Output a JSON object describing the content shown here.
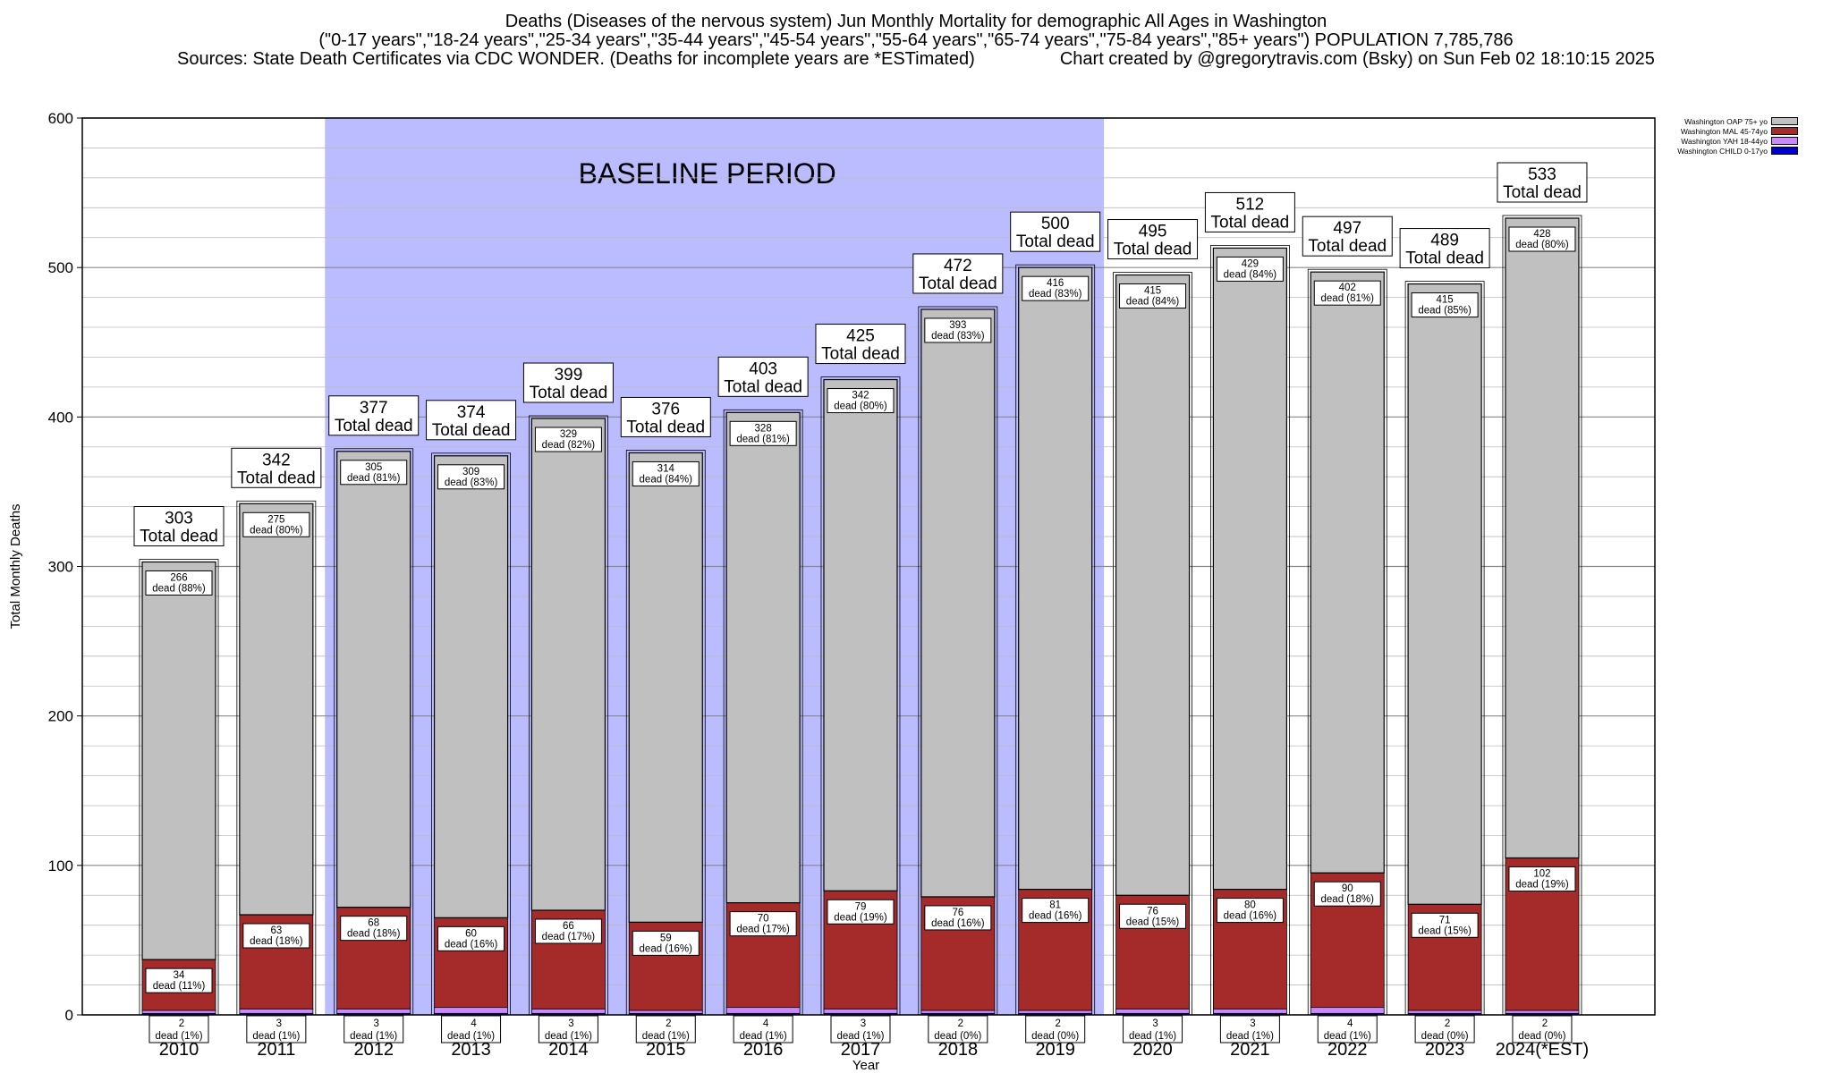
{
  "title": {
    "line1": "Deaths (Diseases of the nervous system) Jun Monthly Mortality for demographic All Ages in Washington",
    "line2": "(\"0-17 years\",\"18-24 years\",\"25-34 years\",\"35-44 years\",\"45-54 years\",\"55-64 years\",\"65-74 years\",\"75-84 years\",\"85+ years\") POPULATION 7,785,786",
    "line3": "Sources: State Death Certificates via CDC WONDER. (Deaths for incomplete years are *ESTimated)",
    "line3b": "Chart created by @gregorytravis.com (Bsky) on Sun Feb 02 18:10:15 2025"
  },
  "legend": [
    {
      "label": "Washington OAP 75+ yo",
      "color": "#c0c0c0"
    },
    {
      "label": "Washington MAL 45-74yo",
      "color": "#a52a2a"
    },
    {
      "label": "Washington YAH 18-44yo",
      "color": "#cc88ff"
    },
    {
      "label": "Washington CHILD 0-17yo",
      "color": "#0000cc"
    }
  ],
  "chart_data": {
    "type": "bar",
    "stacked": true,
    "title": "Deaths (Diseases of the nervous system) Jun Monthly Mortality for demographic All Ages in Washington",
    "xlabel": "Year",
    "ylabel": "Total Monthly Deaths",
    "ylim": [
      0,
      600
    ],
    "yticks": [
      0,
      100,
      200,
      300,
      400,
      500,
      600
    ],
    "grid": true,
    "legend_position": "top-right",
    "baseline_label": "BASELINE PERIOD",
    "baseline_range": [
      "2012",
      "2019"
    ],
    "total_label": "Total dead",
    "dead_label": "dead",
    "categories": [
      "2010",
      "2011",
      "2012",
      "2013",
      "2014",
      "2015",
      "2016",
      "2017",
      "2018",
      "2019",
      "2020",
      "2021",
      "2022",
      "2023",
      "2024(*EST)"
    ],
    "totals": [
      303,
      342,
      377,
      374,
      399,
      376,
      403,
      425,
      472,
      500,
      495,
      512,
      497,
      489,
      533
    ],
    "series": [
      {
        "name": "Washington CHILD 0-17yo",
        "color": "#0000cc",
        "values": [
          1,
          1,
          1,
          1,
          1,
          1,
          1,
          1,
          1,
          1,
          1,
          1,
          1,
          1,
          1
        ]
      },
      {
        "name": "Washington YAH 18-44yo",
        "color": "#cc88ff",
        "values": [
          2,
          3,
          3,
          4,
          3,
          2,
          4,
          3,
          2,
          2,
          3,
          3,
          4,
          2,
          2
        ],
        "pct": [
          "1%",
          "1%",
          "1%",
          "1%",
          "1%",
          "1%",
          "1%",
          "1%",
          "0%",
          "0%",
          "1%",
          "1%",
          "1%",
          "0%",
          "0%"
        ]
      },
      {
        "name": "Washington MAL 45-74yo",
        "color": "#a52a2a",
        "values": [
          34,
          63,
          68,
          60,
          66,
          59,
          70,
          79,
          76,
          81,
          76,
          80,
          90,
          71,
          102
        ],
        "pct": [
          "11%",
          "18%",
          "18%",
          "16%",
          "17%",
          "16%",
          "17%",
          "19%",
          "16%",
          "16%",
          "15%",
          "16%",
          "18%",
          "15%",
          "19%"
        ]
      },
      {
        "name": "Washington OAP 75+ yo",
        "color": "#c0c0c0",
        "values": [
          266,
          275,
          305,
          309,
          329,
          314,
          328,
          342,
          393,
          416,
          415,
          429,
          402,
          415,
          428
        ],
        "pct": [
          "88%",
          "80%",
          "81%",
          "83%",
          "82%",
          "84%",
          "81%",
          "80%",
          "83%",
          "83%",
          "84%",
          "84%",
          "81%",
          "85%",
          "80%"
        ]
      }
    ]
  }
}
